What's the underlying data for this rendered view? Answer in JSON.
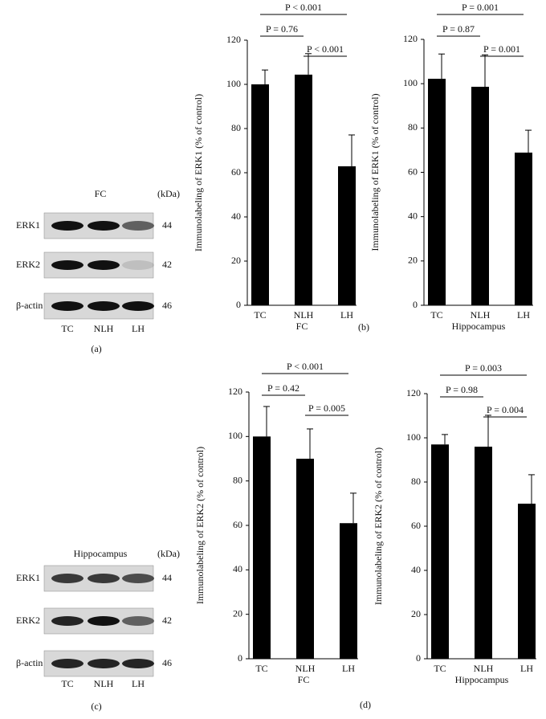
{
  "blots": [
    {
      "header": "FC",
      "unit": "(kDa)",
      "rows": [
        {
          "label": "ERK1",
          "kda": 44
        },
        {
          "label": "ERK2",
          "kda": 42
        },
        {
          "label": "β-actin",
          "kda": 46
        }
      ],
      "lanes": [
        "TC",
        "NLH",
        "LH"
      ],
      "panel": "(a)"
    },
    {
      "header": "Hippocampus",
      "unit": "(kDa)",
      "rows": [
        {
          "label": "ERK1",
          "kda": 44
        },
        {
          "label": "ERK2",
          "kda": 42
        },
        {
          "label": "β-actin",
          "kda": 46
        }
      ],
      "lanes": [
        "TC",
        "NLH",
        "LH"
      ],
      "panel": "(c)"
    }
  ],
  "chart_data": [
    {
      "type": "bar",
      "ylabel": "Immunolabeling of ERK1 (% of control)",
      "xlabel": "FC",
      "categories": [
        "TC",
        "NLH",
        "LH"
      ],
      "values": [
        100,
        104.4,
        62.9
      ],
      "errors": [
        6.5,
        9.5,
        14.2
      ],
      "color": "#000000",
      "ylim": [
        0,
        120
      ],
      "yticks": [
        0,
        20,
        40,
        60,
        80,
        100,
        120
      ],
      "annotations": [
        "P < 0.001",
        "P = 0.76",
        "P < 0.001"
      ]
    },
    {
      "type": "bar",
      "ylabel": "Immunolabeling of ERK1 (% of control)",
      "xlabel": "Hippocampus",
      "categories": [
        "TC",
        "NLH",
        "LH"
      ],
      "values": [
        102.2,
        98.6,
        68.9
      ],
      "errors": [
        11.2,
        14.4,
        10.1
      ],
      "color": "#000000",
      "ylim": [
        0,
        120
      ],
      "yticks": [
        0,
        20,
        40,
        60,
        80,
        100,
        120
      ],
      "annotations": [
        "P = 0.001",
        "P = 0.87",
        "P = 0.001"
      ]
    },
    {
      "type": "bar",
      "ylabel": "Immunolabeling of ERK2 (% of control)",
      "xlabel": "FC",
      "categories": [
        "TC",
        "NLH",
        "LH"
      ],
      "values": [
        100,
        90,
        61
      ],
      "errors": [
        13.5,
        13.4,
        13.5
      ],
      "color": "#000000",
      "ylim": [
        0,
        120
      ],
      "yticks": [
        0,
        20,
        40,
        60,
        80,
        100,
        120
      ],
      "annotations": [
        "P < 0.001",
        "P = 0.42",
        "P = 0.005"
      ]
    },
    {
      "type": "bar",
      "ylabel": "Immunolabeling of ERK2 (% of control)",
      "xlabel": "Hippocampus",
      "categories": [
        "TC",
        "NLH",
        "LH"
      ],
      "values": [
        97,
        96,
        70.2
      ],
      "errors": [
        4.5,
        14.2,
        13.1
      ],
      "color": "#000000",
      "ylim": [
        0,
        120
      ],
      "yticks": [
        0,
        20,
        40,
        60,
        80,
        100,
        120
      ],
      "annotations": [
        "P = 0.003",
        "P = 0.98",
        "P = 0.004"
      ]
    }
  ],
  "panel_labels": [
    "(b)",
    "(d)"
  ]
}
